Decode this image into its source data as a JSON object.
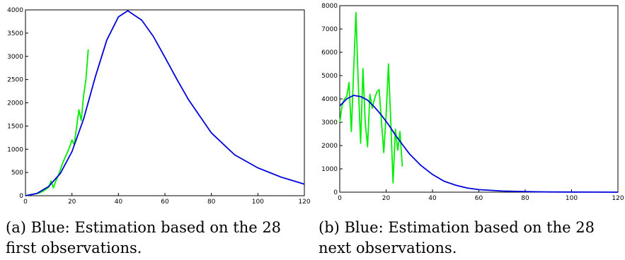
{
  "chart_data": [
    {
      "type": "line",
      "title": "",
      "xlabel": "",
      "ylabel": "",
      "xlim": [
        0,
        120
      ],
      "ylim": [
        0,
        4000
      ],
      "xticks": [
        0,
        20,
        40,
        60,
        80,
        100,
        120
      ],
      "yticks": [
        0,
        500,
        1000,
        1500,
        2000,
        2500,
        3000,
        3500,
        4000
      ],
      "grid": false,
      "series": [
        {
          "color": "#0000dd",
          "x": [
            0,
            5,
            10,
            15,
            20,
            25,
            30,
            35,
            40,
            44,
            50,
            55,
            60,
            65,
            70,
            80,
            90,
            100,
            110,
            120
          ],
          "y": [
            0,
            50,
            200,
            480,
            950,
            1650,
            2550,
            3350,
            3850,
            3980,
            3780,
            3430,
            2980,
            2520,
            2080,
            1350,
            880,
            600,
            400,
            250
          ]
        },
        {
          "color": "#00ee00",
          "x": [
            0,
            2,
            4,
            6,
            8,
            10,
            11,
            12,
            13,
            14,
            15,
            16,
            17,
            18,
            19,
            20,
            21,
            22,
            23,
            24,
            25,
            26,
            27
          ],
          "y": [
            0,
            20,
            40,
            60,
            110,
            180,
            320,
            170,
            310,
            420,
            560,
            700,
            820,
            930,
            1050,
            1200,
            1100,
            1480,
            1850,
            1620,
            2150,
            2500,
            3150
          ]
        }
      ]
    },
    {
      "type": "line",
      "title": "",
      "xlabel": "",
      "ylabel": "",
      "xlim": [
        0,
        120
      ],
      "ylim": [
        0,
        8000
      ],
      "xticks": [
        0,
        20,
        40,
        60,
        80,
        100,
        120
      ],
      "yticks": [
        0,
        1000,
        2000,
        3000,
        4000,
        5000,
        6000,
        7000,
        8000
      ],
      "grid": false,
      "series": [
        {
          "color": "#0000dd",
          "x": [
            0,
            3,
            6,
            9,
            12,
            15,
            18,
            21,
            24,
            27,
            30,
            35,
            40,
            45,
            50,
            55,
            60,
            70,
            80,
            90,
            100,
            110,
            120
          ],
          "y": [
            3700,
            4000,
            4150,
            4100,
            3950,
            3650,
            3300,
            2900,
            2450,
            2050,
            1650,
            1150,
            760,
            470,
            300,
            180,
            110,
            50,
            25,
            10,
            5,
            2,
            0
          ]
        },
        {
          "color": "#00ee00",
          "x": [
            0,
            1,
            2,
            3,
            4,
            5,
            6,
            7,
            8,
            9,
            10,
            11,
            12,
            13,
            14,
            15,
            16,
            17,
            18,
            19,
            20,
            21,
            22,
            23,
            24,
            25,
            26,
            27
          ],
          "y": [
            3000,
            3700,
            4000,
            4100,
            4700,
            2600,
            5200,
            7700,
            4600,
            2100,
            5300,
            3000,
            1950,
            4200,
            3600,
            4000,
            4300,
            4400,
            3000,
            1700,
            3300,
            5500,
            3100,
            400,
            2700,
            1800,
            2600,
            1100
          ]
        }
      ]
    }
  ],
  "captions": [
    {
      "line1": "(a) Blue: Estimation based on the 28",
      "line2": "first observations."
    },
    {
      "line1": "(b) Blue: Estimation based on the 28",
      "line2": "next observations."
    }
  ]
}
